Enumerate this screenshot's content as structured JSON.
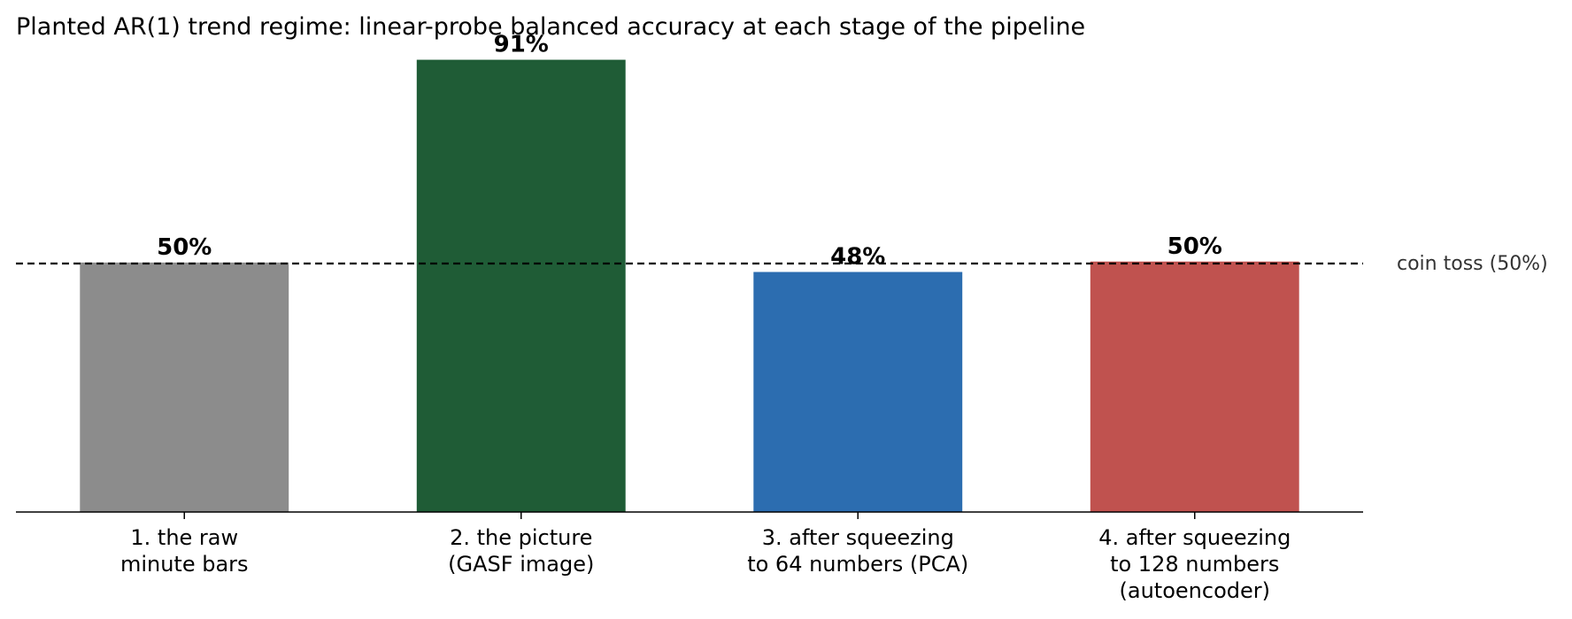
{
  "chart_data": {
    "type": "bar",
    "title": "Planted AR(1) trend regime: linear-probe balanced accuracy at each stage of the pipeline",
    "categories": [
      [
        "1. the raw",
        "minute bars"
      ],
      [
        "2. the picture",
        "(GASF image)"
      ],
      [
        "3. after squeezing",
        "to 64 numbers (PCA)"
      ],
      [
        "4. after squeezing",
        "to 128 numbers",
        "(autoencoder)"
      ]
    ],
    "values": [
      50.2,
      91,
      48.3,
      50.4
    ],
    "value_labels": [
      "50%",
      "91%",
      "48%",
      "50%"
    ],
    "colors": [
      "#8c8c8c",
      "#1f5c36",
      "#2c6db0",
      "#c0524f"
    ],
    "ylim": [
      0,
      100
    ],
    "reference_line": {
      "value": 50,
      "label": "coin toss (50%)",
      "style": "dashed"
    },
    "grid": false,
    "xlabel": "",
    "ylabel": ""
  }
}
